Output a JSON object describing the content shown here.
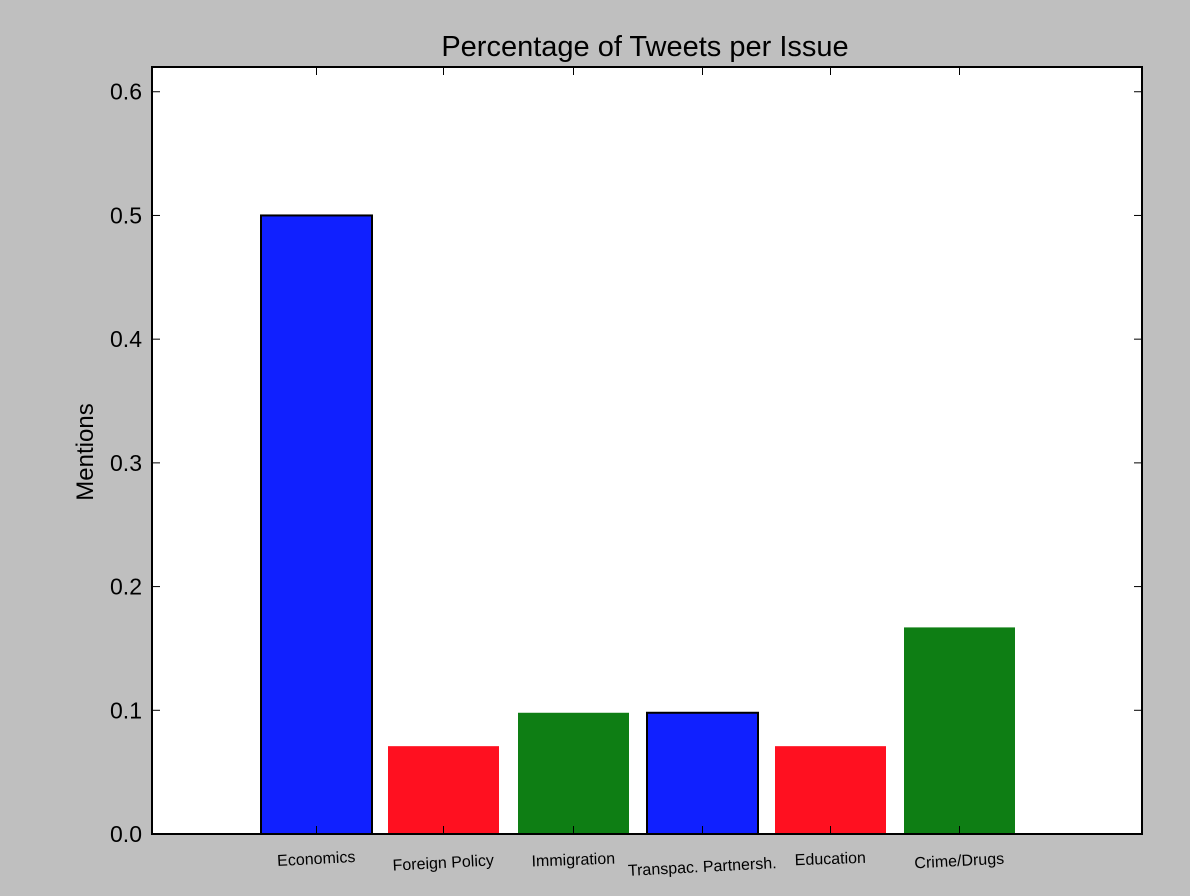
{
  "chart_data": {
    "type": "bar",
    "title": "Percentage of Tweets per Issue",
    "xlabel": "",
    "ylabel": "Mentions",
    "categories": [
      "Economics",
      "Foreign Policy",
      "Immigration",
      "Transpac. Partnersh.",
      "Education",
      "Crime/Drugs"
    ],
    "values": [
      0.5,
      0.071,
      0.098,
      0.098,
      0.071,
      0.167
    ],
    "colors": [
      "#1020ff",
      "#ff1020",
      "#0e7e14",
      "#1020ff",
      "#ff1020",
      "#0e7e14"
    ],
    "outlined": [
      true,
      false,
      false,
      true,
      false,
      false
    ],
    "ylim": [
      0,
      0.62
    ],
    "yticks": [
      "0.0",
      "0.1",
      "0.2",
      "0.3",
      "0.4",
      "0.5",
      "0.6"
    ],
    "grid": false,
    "legend": "none"
  }
}
